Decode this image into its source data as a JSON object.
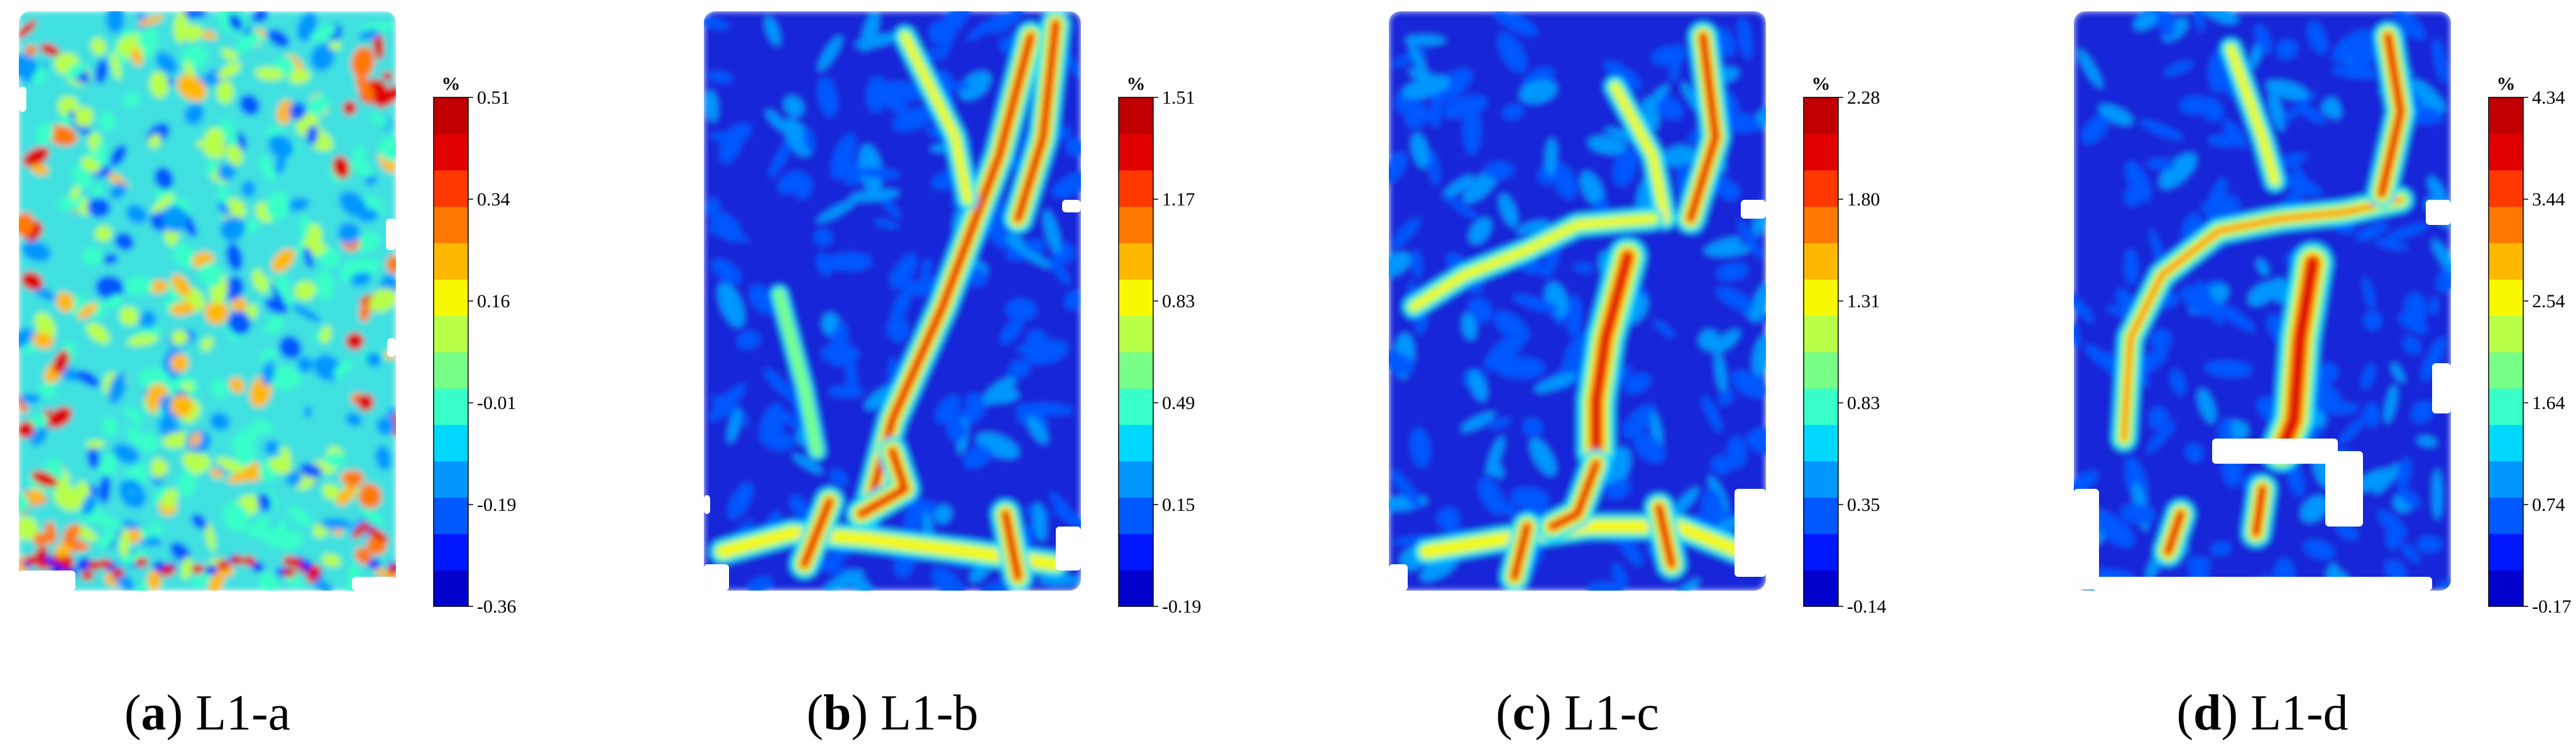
{
  "colors": {
    "jet": [
      "#0000cd",
      "#0018ff",
      "#0058ff",
      "#0098ff",
      "#00d8ff",
      "#38ffc8",
      "#78ff88",
      "#b8ff48",
      "#f8f800",
      "#ffb800",
      "#ff7800",
      "#ff3800",
      "#e00000",
      "#c00000"
    ],
    "background_fill": "#1428d8",
    "hole": "#ffffff"
  },
  "panels": [
    {
      "letter": "a",
      "label": "L1-a",
      "unit": "%",
      "ticks": [
        "0.51",
        "0.34",
        "0.16",
        "-0.01",
        "-0.19",
        "-0.36"
      ],
      "pattern": "uniform-noise"
    },
    {
      "letter": "b",
      "label": "L1-b",
      "unit": "%",
      "ticks": [
        "1.51",
        "1.17",
        "0.83",
        "0.49",
        "0.15",
        "-0.19"
      ],
      "pattern": "diagonal-bands"
    },
    {
      "letter": "c",
      "label": "L1-c",
      "unit": "%",
      "ticks": [
        "2.28",
        "1.80",
        "1.31",
        "0.83",
        "0.35",
        "-0.14"
      ],
      "pattern": "central-crack"
    },
    {
      "letter": "d",
      "label": "L1-d",
      "unit": "%",
      "ticks": [
        "4.34",
        "3.44",
        "2.54",
        "1.64",
        "0.74",
        "-0.17"
      ],
      "pattern": "ring-crack"
    }
  ]
}
